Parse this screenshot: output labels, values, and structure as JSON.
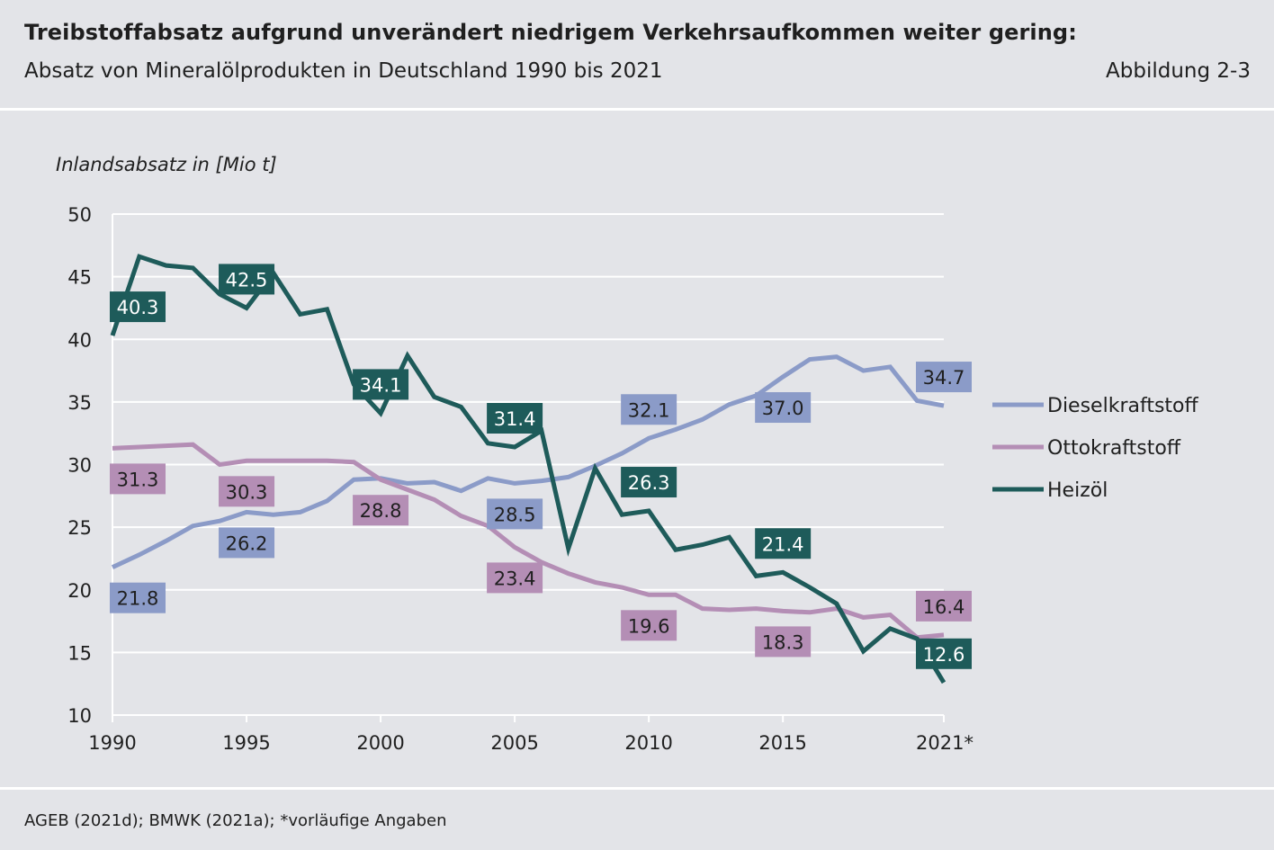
{
  "header": {
    "title": "Treibstoffabsatz aufgrund unverändert niedrigem Verkehrsaufkommen weiter gering:",
    "subtitle": "Absatz von Mineralölprodukten in Deutschland 1990 bis 2021",
    "figure_label": "Abbildung 2-3"
  },
  "footer": {
    "source": "AGEB (2021d); BMWK (2021a); *vorläufige Angaben"
  },
  "chart_data": {
    "type": "line",
    "ylabel": "Inlandsabsatz in [Mio t]",
    "xlabel": "",
    "ylim": [
      10,
      50
    ],
    "yticks": [
      10,
      15,
      20,
      25,
      30,
      35,
      40,
      45,
      50
    ],
    "xlim": [
      1990,
      2021
    ],
    "xticks": [
      1990,
      1995,
      2000,
      2005,
      2010,
      2015,
      2021
    ],
    "xtick_labels": [
      "1990",
      "1995",
      "2000",
      "2005",
      "2010",
      "2015",
      "2021*"
    ],
    "grid": "horizontal",
    "legend": "right",
    "x": [
      1990,
      1991,
      1992,
      1993,
      1994,
      1995,
      1996,
      1997,
      1998,
      1999,
      2000,
      2001,
      2002,
      2003,
      2004,
      2005,
      2006,
      2007,
      2008,
      2009,
      2010,
      2011,
      2012,
      2013,
      2014,
      2015,
      2016,
      2017,
      2018,
      2019,
      2020,
      2021
    ],
    "series": [
      {
        "name": "Dieselkraftstoff",
        "color": "#8b9bc8",
        "values": [
          21.8,
          22.8,
          23.9,
          25.1,
          25.5,
          26.2,
          26.0,
          26.2,
          27.1,
          28.8,
          28.9,
          28.5,
          28.6,
          27.9,
          28.9,
          28.5,
          28.7,
          29.0,
          29.9,
          30.9,
          32.1,
          32.8,
          33.6,
          34.8,
          35.5,
          37.0,
          38.4,
          38.6,
          37.5,
          37.8,
          35.1,
          34.7
        ],
        "labels": [
          {
            "x": 1990,
            "value": "21.8",
            "pos": "below"
          },
          {
            "x": 1995,
            "value": "26.2",
            "pos": "below"
          },
          {
            "x": 2005,
            "value": "28.5",
            "pos": "below"
          },
          {
            "x": 2010,
            "value": "32.1",
            "pos": "above"
          },
          {
            "x": 2015,
            "value": "37.0",
            "pos": "below"
          },
          {
            "x": 2021,
            "value": "34.7",
            "pos": "above"
          }
        ]
      },
      {
        "name": "Ottokraftstoff",
        "color": "#b48eb5",
        "values": [
          31.3,
          31.4,
          31.5,
          31.6,
          30.0,
          30.3,
          30.3,
          30.3,
          30.3,
          30.2,
          28.8,
          28.0,
          27.2,
          25.9,
          25.1,
          23.4,
          22.2,
          21.3,
          20.6,
          20.2,
          19.6,
          19.6,
          18.5,
          18.4,
          18.5,
          18.3,
          18.2,
          18.5,
          17.8,
          18.0,
          16.2,
          16.4
        ],
        "labels": [
          {
            "x": 1990,
            "value": "31.3",
            "pos": "below"
          },
          {
            "x": 1995,
            "value": "30.3",
            "pos": "below"
          },
          {
            "x": 2000,
            "value": "28.8",
            "pos": "below"
          },
          {
            "x": 2005,
            "value": "23.4",
            "pos": "below"
          },
          {
            "x": 2010,
            "value": "19.6",
            "pos": "below"
          },
          {
            "x": 2015,
            "value": "18.3",
            "pos": "below"
          },
          {
            "x": 2021,
            "value": "16.4",
            "pos": "above"
          }
        ]
      },
      {
        "name": "Heizöl",
        "color": "#1e5b5a",
        "values": [
          40.3,
          46.6,
          45.9,
          45.7,
          43.6,
          42.5,
          45.3,
          42.0,
          42.4,
          36.4,
          34.1,
          38.7,
          35.4,
          34.6,
          31.7,
          31.4,
          32.7,
          23.3,
          29.7,
          26.0,
          26.3,
          23.2,
          23.6,
          24.2,
          21.1,
          21.4,
          20.2,
          18.9,
          15.1,
          16.9,
          16.1,
          12.6
        ],
        "labels": [
          {
            "x": 1990,
            "value": "40.3",
            "pos": "above"
          },
          {
            "x": 1995,
            "value": "42.5",
            "pos": "above"
          },
          {
            "x": 2000,
            "value": "34.1",
            "pos": "above"
          },
          {
            "x": 2005,
            "value": "31.4",
            "pos": "above"
          },
          {
            "x": 2010,
            "value": "26.3",
            "pos": "above"
          },
          {
            "x": 2015,
            "value": "21.4",
            "pos": "above"
          },
          {
            "x": 2021,
            "value": "12.6",
            "pos": "above"
          }
        ]
      }
    ]
  }
}
